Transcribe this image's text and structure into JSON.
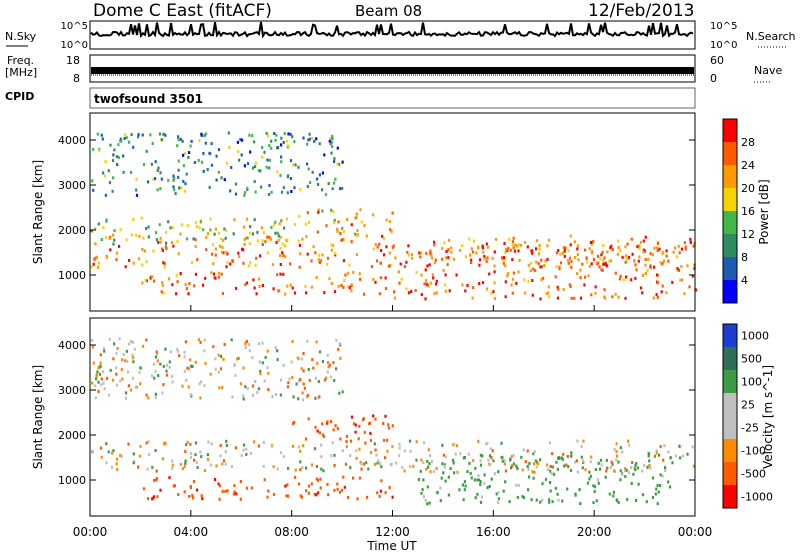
{
  "header": {
    "station": "Dome C East (fitACF)",
    "beam": "Beam 08",
    "date": "12/Feb/2013"
  },
  "status_panels": {
    "nsky_label": "N.Sky",
    "nsky_ticks": [
      "10^5",
      "10^0"
    ],
    "nsearch_label": "N.Search",
    "nsearch_ticks": [
      "10^5",
      "10^0"
    ],
    "freq_label": "Freq.",
    "freq_unit": "[MHz]",
    "freq_ticks": [
      "18",
      "8"
    ],
    "nave_label": "Nave",
    "nave_ticks": [
      "60",
      "0"
    ],
    "cpid_label": "CPID",
    "cpid_value": "twofsound 3501"
  },
  "time_axis": {
    "label": "Time UT",
    "ticks": [
      "00:00",
      "04:00",
      "08:00",
      "12:00",
      "16:00",
      "20:00",
      "00:00"
    ]
  },
  "colors": {
    "power_scale": [
      "#0000ff",
      "#1e5bb4",
      "#2f8c5e",
      "#3fb84a",
      "#f5d400",
      "#ff9a00",
      "#ff5a00",
      "#ff0000"
    ],
    "velocity_scale": [
      "#1c3fcf",
      "#2e6f5a",
      "#3d9b45",
      "#bfbfbf",
      "#bfbfbf",
      "#ff8c00",
      "#ff5a00",
      "#ff0000"
    ]
  },
  "chart_data": [
    {
      "type": "heatmap",
      "title": "",
      "xlabel": "Time UT",
      "ylabel": "Slant Range [km]",
      "x": [
        "00:00",
        "04:00",
        "08:00",
        "12:00",
        "16:00",
        "20:00",
        "00:00"
      ],
      "ylim": [
        200,
        4600
      ],
      "yticks": [
        1000,
        2000,
        3000,
        4000
      ],
      "colorbar_label": "Power [dB]",
      "colorbar_ticks": [
        4,
        8,
        12,
        16,
        20,
        24,
        28
      ],
      "grid": false,
      "bands": [
        {
          "t": [
            0,
            24
          ],
          "r": [
            1200,
            1900
          ],
          "value_db": 24
        },
        {
          "t": [
            0,
            8
          ],
          "r": [
            1700,
            2300
          ],
          "value_db": 16
        },
        {
          "t": [
            2,
            12
          ],
          "r": [
            600,
            1100
          ],
          "value_db": 26
        },
        {
          "t": [
            12,
            24
          ],
          "r": [
            500,
            1700
          ],
          "value_db": 26
        },
        {
          "t": [
            0,
            10
          ],
          "r": [
            2800,
            4200
          ],
          "value_db": 10
        },
        {
          "t": [
            8,
            12
          ],
          "r": [
            1900,
            2500
          ],
          "value_db": 22
        }
      ]
    },
    {
      "type": "heatmap",
      "title": "",
      "xlabel": "Time UT",
      "ylabel": "Slant Range [km]",
      "x": [
        "00:00",
        "04:00",
        "08:00",
        "12:00",
        "16:00",
        "20:00",
        "00:00"
      ],
      "ylim": [
        200,
        4600
      ],
      "yticks": [
        1000,
        2000,
        3000,
        4000
      ],
      "colorbar_label": "Velocity [m s^-1]",
      "colorbar_ticks": [
        1000,
        500,
        100,
        25,
        -25,
        -100,
        -500,
        -1000
      ],
      "grid": false,
      "bands": [
        {
          "t": [
            0,
            24
          ],
          "r": [
            1200,
            1900
          ],
          "value_ms": 0
        },
        {
          "t": [
            2,
            12
          ],
          "r": [
            600,
            1100
          ],
          "value_ms": -400
        },
        {
          "t": [
            8,
            12
          ],
          "r": [
            1900,
            2500
          ],
          "value_ms": -400
        },
        {
          "t": [
            13,
            23
          ],
          "r": [
            500,
            1600
          ],
          "value_ms": 200
        },
        {
          "t": [
            0,
            10
          ],
          "r": [
            2800,
            4200
          ],
          "value_ms": 0
        }
      ]
    }
  ]
}
